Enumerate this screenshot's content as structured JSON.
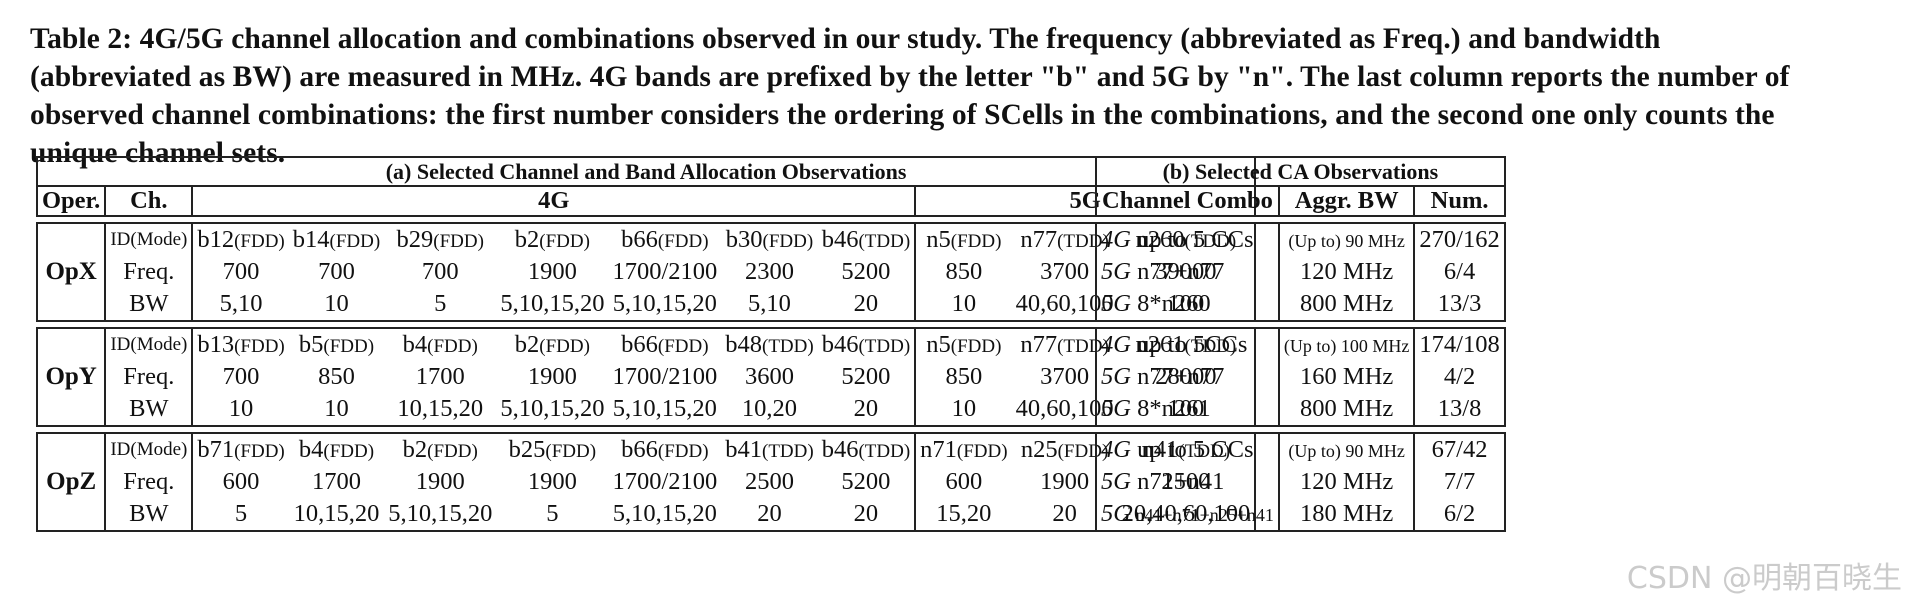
{
  "caption": "Table 2: 4G/5G channel allocation and combinations observed in our study. The frequency (abbreviated as Freq.) and bandwidth (abbreviated as BW) are measured in MHz. 4G bands are prefixed by the letter \"b\" and 5G by \"n\". The last column reports the number of observed channel combinations: the first number considers the ordering of SCells in the combinations, and the second one only counts the unique channel sets.",
  "table_a": {
    "title": "(a) Selected Channel and Band Allocation Observations",
    "col_oper": "Oper.",
    "col_ch": "Ch.",
    "col_4g": "4G",
    "col_5g": "5G",
    "blocks": [
      {
        "operator": "OpX",
        "labels": [
          "ID(Mode)",
          "Freq.",
          "BW"
        ],
        "bands": [
          {
            "band": "b12",
            "mode": "(FDD)",
            "freq": "700",
            "bw": "5,10"
          },
          {
            "band": "b14",
            "mode": "(FDD)",
            "freq": "700",
            "bw": "10"
          },
          {
            "band": "b29",
            "mode": "(FDD)",
            "freq": "700",
            "bw": "5"
          },
          {
            "band": "b2",
            "mode": "(FDD)",
            "freq": "1900",
            "bw": "5,10,15,20"
          },
          {
            "band": "b66",
            "mode": "(FDD)",
            "freq": "1700/2100",
            "bw": "5,10,15,20"
          },
          {
            "band": "b30",
            "mode": "(FDD)",
            "freq": "2300",
            "bw": "5,10"
          },
          {
            "band": "b46",
            "mode": "(TDD)",
            "freq": "5200",
            "bw": "20"
          },
          {
            "band": "n5",
            "mode": "(FDD)",
            "freq": "850",
            "bw": "10"
          },
          {
            "band": "n77",
            "mode": "(TDD)",
            "freq": "3700",
            "bw": "40,60,100"
          },
          {
            "band": "n260",
            "mode": "(TDD)",
            "freq": "39000",
            "bw": "100"
          }
        ]
      },
      {
        "operator": "OpY",
        "labels": [
          "ID(Mode)",
          "Freq.",
          "BW"
        ],
        "bands": [
          {
            "band": "b13",
            "mode": "(FDD)",
            "freq": "700",
            "bw": "10"
          },
          {
            "band": "b5",
            "mode": "(FDD)",
            "freq": "850",
            "bw": "10"
          },
          {
            "band": "b4",
            "mode": "(FDD)",
            "freq": "1700",
            "bw": "10,15,20"
          },
          {
            "band": "b2",
            "mode": "(FDD)",
            "freq": "1900",
            "bw": "5,10,15,20"
          },
          {
            "band": "b66",
            "mode": "(FDD)",
            "freq": "1700/2100",
            "bw": "5,10,15,20"
          },
          {
            "band": "b48",
            "mode": "(TDD)",
            "freq": "3600",
            "bw": "10,20"
          },
          {
            "band": "b46",
            "mode": "(TDD)",
            "freq": "5200",
            "bw": "20"
          },
          {
            "band": "n5",
            "mode": "(FDD)",
            "freq": "850",
            "bw": "10"
          },
          {
            "band": "n77",
            "mode": "(TDD)",
            "freq": "3700",
            "bw": "40,60,100"
          },
          {
            "band": "n261",
            "mode": "(TDD)",
            "freq": "28000",
            "bw": "100"
          }
        ]
      },
      {
        "operator": "OpZ",
        "labels": [
          "ID(Mode)",
          "Freq.",
          "BW"
        ],
        "bands": [
          {
            "band": "b71",
            "mode": "(FDD)",
            "freq": "600",
            "bw": "5"
          },
          {
            "band": "b4",
            "mode": "(FDD)",
            "freq": "1700",
            "bw": "10,15,20"
          },
          {
            "band": "b2",
            "mode": "(FDD)",
            "freq": "1900",
            "bw": "5,10,15,20"
          },
          {
            "band": "b25",
            "mode": "(FDD)",
            "freq": "1900",
            "bw": "5"
          },
          {
            "band": "b66",
            "mode": "(FDD)",
            "freq": "1700/2100",
            "bw": "5,10,15,20"
          },
          {
            "band": "b41",
            "mode": "(TDD)",
            "freq": "2500",
            "bw": "20"
          },
          {
            "band": "b46",
            "mode": "(TDD)",
            "freq": "5200",
            "bw": "20"
          },
          {
            "band": "n71",
            "mode": "(FDD)",
            "freq": "600",
            "bw": "15,20"
          },
          {
            "band": "n25",
            "mode": "(FDD)",
            "freq": "1900",
            "bw": "20"
          },
          {
            "band": "n41",
            "mode": "(TDD)",
            "freq": "2500",
            "bw": "20,40,60,100"
          }
        ]
      }
    ]
  },
  "table_b": {
    "title": "(b) Selected CA Observations",
    "col_combo": "Channel Combo",
    "col_aggr": "Aggr. BW",
    "col_num": "Num.",
    "blocks": [
      {
        "rows": [
          {
            "gen": "4G",
            "combo": " up to 5 CCs",
            "combo_small": false,
            "aggr_pre": "(Up to) 90 MHz",
            "aggr": "",
            "num": "270/162"
          },
          {
            "gen": "5G",
            "combo": " n77+n77",
            "combo_small": false,
            "aggr_pre": "",
            "aggr": "120 MHz",
            "num": "6/4"
          },
          {
            "gen": "5G",
            "combo": " 8*n260",
            "combo_small": false,
            "aggr_pre": "",
            "aggr": "800 MHz",
            "num": "13/3"
          }
        ]
      },
      {
        "rows": [
          {
            "gen": "4G",
            "combo": " up to 5CCs",
            "combo_small": false,
            "aggr_pre": "(Up to) 100 MHz",
            "aggr": "",
            "num": "174/108"
          },
          {
            "gen": "5G",
            "combo": " n77+n77",
            "combo_small": false,
            "aggr_pre": "",
            "aggr": "160 MHz",
            "num": "4/2"
          },
          {
            "gen": "5G",
            "combo": " 8*n261",
            "combo_small": false,
            "aggr_pre": "",
            "aggr": "800 MHz",
            "num": "13/8"
          }
        ]
      },
      {
        "rows": [
          {
            "gen": "4G",
            "combo": " up to 5 CCs",
            "combo_small": false,
            "aggr_pre": "(Up to) 90 MHz",
            "aggr": "",
            "num": "67/42"
          },
          {
            "gen": "5G",
            "combo": " n71+n41",
            "combo_small": false,
            "aggr_pre": "",
            "aggr": "120 MHz",
            "num": "7/7"
          },
          {
            "gen": "5G",
            "combo": " n41+n71+n25+n41",
            "combo_small": true,
            "aggr_pre": "",
            "aggr": "180 MHz",
            "num": "6/2"
          }
        ]
      }
    ]
  },
  "watermark": "CSDN @明朝百晓生"
}
